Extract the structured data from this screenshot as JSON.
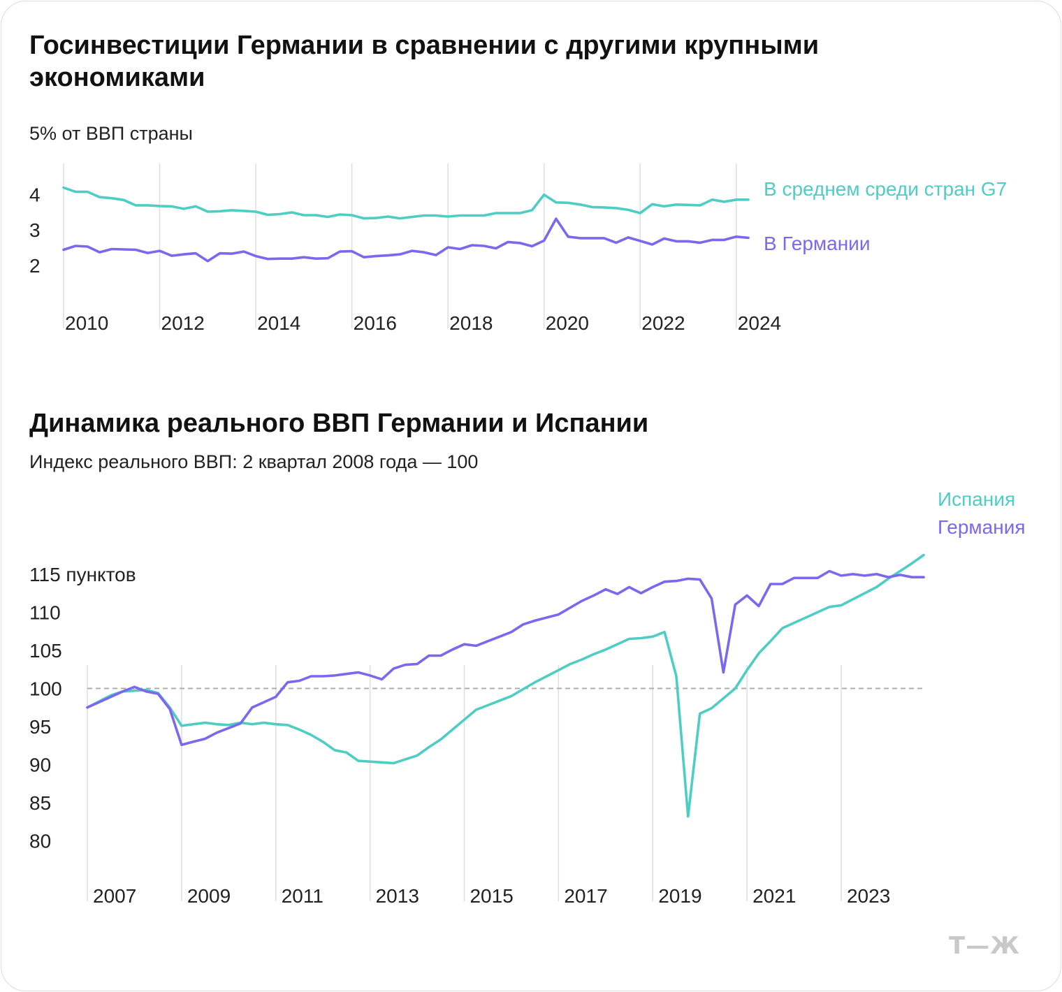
{
  "chart_data": [
    {
      "type": "line",
      "title": "Госинвестиции Германии в сравнении с другими крупными экономиками",
      "subtitle": "5% от ВВП страны",
      "x_tick_labels": [
        "2010",
        "2012",
        "2014",
        "2016",
        "2018",
        "2020",
        "2022",
        "2024"
      ],
      "y_tick_labels": [
        "4",
        "3",
        "2"
      ],
      "ylim": [
        1.6,
        4.35
      ],
      "xlim": [
        2009.5,
        2023.75
      ],
      "grid": "vertical lines at years",
      "legend": "right, inline labels",
      "colors": {
        "g7": "#4ECDC4",
        "germany": "#7B68EE"
      },
      "series": [
        {
          "name": "В среднем среди стран G7",
          "x": [
            2009.5,
            2009.75,
            2010,
            2010.25,
            2010.5,
            2010.75,
            2011,
            2011.25,
            2011.5,
            2011.75,
            2012,
            2012.25,
            2012.5,
            2012.75,
            2013,
            2013.25,
            2013.5,
            2013.75,
            2014,
            2014.25,
            2014.5,
            2014.75,
            2015,
            2015.25,
            2015.5,
            2015.75,
            2016,
            2016.25,
            2016.5,
            2016.75,
            2017,
            2017.25,
            2017.5,
            2017.75,
            2018,
            2018.25,
            2018.5,
            2018.75,
            2019,
            2019.25,
            2019.5,
            2019.75,
            2020,
            2020.25,
            2020.5,
            2020.75,
            2021,
            2021.25,
            2021.5,
            2021.75,
            2022,
            2022.25,
            2022.5,
            2022.75,
            2023,
            2023.25,
            2023.5,
            2023.75
          ],
          "values": [
            4.2,
            4.08,
            4.08,
            3.93,
            3.9,
            3.85,
            3.7,
            3.7,
            3.68,
            3.67,
            3.6,
            3.67,
            3.52,
            3.53,
            3.56,
            3.54,
            3.52,
            3.43,
            3.45,
            3.5,
            3.42,
            3.42,
            3.37,
            3.44,
            3.42,
            3.33,
            3.34,
            3.38,
            3.33,
            3.37,
            3.41,
            3.41,
            3.38,
            3.41,
            3.41,
            3.41,
            3.48,
            3.48,
            3.48,
            3.56,
            4.0,
            3.78,
            3.77,
            3.72,
            3.65,
            3.64,
            3.62,
            3.57,
            3.48,
            3.73,
            3.67,
            3.72,
            3.71,
            3.7,
            3.86,
            3.8,
            3.86,
            3.86
          ]
        },
        {
          "name": "В Германии",
          "x": [
            2009.5,
            2009.75,
            2010,
            2010.25,
            2010.5,
            2010.75,
            2011,
            2011.25,
            2011.5,
            2011.75,
            2012,
            2012.25,
            2012.5,
            2012.75,
            2013,
            2013.25,
            2013.5,
            2013.75,
            2014,
            2014.25,
            2014.5,
            2014.75,
            2015,
            2015.25,
            2015.5,
            2015.75,
            2016,
            2016.25,
            2016.5,
            2016.75,
            2017,
            2017.25,
            2017.5,
            2017.75,
            2018,
            2018.25,
            2018.5,
            2018.75,
            2019,
            2019.25,
            2019.5,
            2019.75,
            2020,
            2020.25,
            2020.5,
            2020.75,
            2021,
            2021.25,
            2021.5,
            2021.75,
            2022,
            2022.25,
            2022.5,
            2022.75,
            2023,
            2023.25,
            2023.5,
            2023.75
          ],
          "values": [
            2.44,
            2.55,
            2.53,
            2.37,
            2.46,
            2.45,
            2.44,
            2.35,
            2.41,
            2.27,
            2.31,
            2.34,
            2.12,
            2.34,
            2.33,
            2.39,
            2.26,
            2.18,
            2.19,
            2.19,
            2.23,
            2.19,
            2.2,
            2.39,
            2.4,
            2.23,
            2.26,
            2.28,
            2.31,
            2.41,
            2.37,
            2.29,
            2.51,
            2.46,
            2.57,
            2.55,
            2.48,
            2.66,
            2.63,
            2.54,
            2.7,
            3.32,
            2.81,
            2.77,
            2.77,
            2.77,
            2.64,
            2.79,
            2.69,
            2.59,
            2.76,
            2.68,
            2.68,
            2.64,
            2.72,
            2.72,
            2.81,
            2.78
          ]
        }
      ]
    },
    {
      "type": "line",
      "title": "Динамика реального ВВП Германии и Испании",
      "subtitle": "Индекс реального ВВП: 2 квартал 2008 года — 100",
      "x_tick_labels": [
        "2007",
        "2009",
        "2011",
        "2013",
        "2015",
        "2017",
        "2019",
        "2021",
        "2023"
      ],
      "y_tick_labels": [
        "115 пунктов",
        "110",
        "105",
        "100",
        "95",
        "90",
        "85",
        "80"
      ],
      "ylim": [
        78.5,
        117
      ],
      "xlim": [
        2007,
        2024.75
      ],
      "reference_line": 100,
      "grid": "vertical lines at years",
      "legend": "top-right, inline labels",
      "colors": {
        "spain": "#4ECDC4",
        "germany": "#7B68EE",
        "reference": "#aaaaaa"
      },
      "series": [
        {
          "name": "Испания",
          "x": [
            2007,
            2007.25,
            2007.5,
            2007.75,
            2008,
            2008.25,
            2008.5,
            2008.75,
            2009,
            2009.25,
            2009.5,
            2009.75,
            2010,
            2010.25,
            2010.5,
            2010.75,
            2011,
            2011.25,
            2011.5,
            2011.75,
            2012,
            2012.25,
            2012.5,
            2012.75,
            2013,
            2013.25,
            2013.5,
            2013.75,
            2014,
            2014.25,
            2014.5,
            2014.75,
            2015,
            2015.25,
            2015.5,
            2015.75,
            2016,
            2016.25,
            2016.5,
            2016.75,
            2017,
            2017.25,
            2017.5,
            2017.75,
            2018,
            2018.25,
            2018.5,
            2018.75,
            2019,
            2019.25,
            2019.5,
            2019.75,
            2020,
            2020.25,
            2020.5,
            2020.75,
            2021,
            2021.25,
            2021.5,
            2021.75,
            2022,
            2022.25,
            2022.5,
            2022.75,
            2023,
            2023.25,
            2023.5,
            2023.75,
            2024,
            2024.25,
            2024.5,
            2024.75
          ],
          "values": [
            97.5,
            98.3,
            99.1,
            99.6,
            99.7,
            99.8,
            99.4,
            97.5,
            95.1,
            95.3,
            95.5,
            95.3,
            95.2,
            95.5,
            95.3,
            95.5,
            95.3,
            95.2,
            94.6,
            93.9,
            93.0,
            91.9,
            91.6,
            90.5,
            90.4,
            90.3,
            90.2,
            90.7,
            91.2,
            92.3,
            93.3,
            94.6,
            95.9,
            97.2,
            97.8,
            98.4,
            99.0,
            99.9,
            100.8,
            101.6,
            102.4,
            103.2,
            103.8,
            104.5,
            105.1,
            105.8,
            106.5,
            106.6,
            106.8,
            107.4,
            101.6,
            83.2,
            96.7,
            97.4,
            98.7,
            100.0,
            102.4,
            104.6,
            106.2,
            107.9,
            108.6,
            109.3,
            110.0,
            110.7,
            110.9,
            111.7,
            112.5,
            113.3,
            114.4,
            115.4,
            116.4,
            117.5
          ]
        },
        {
          "name": "Германия",
          "x": [
            2007,
            2007.25,
            2007.5,
            2007.75,
            2008,
            2008.25,
            2008.5,
            2008.75,
            2009,
            2009.25,
            2009.5,
            2009.75,
            2010,
            2010.25,
            2010.5,
            2010.75,
            2011,
            2011.25,
            2011.5,
            2011.75,
            2012,
            2012.25,
            2012.5,
            2012.75,
            2013,
            2013.25,
            2013.5,
            2013.75,
            2014,
            2014.25,
            2014.5,
            2014.75,
            2015,
            2015.25,
            2015.5,
            2015.75,
            2016,
            2016.25,
            2016.5,
            2016.75,
            2017,
            2017.25,
            2017.5,
            2017.75,
            2018,
            2018.25,
            2018.5,
            2018.75,
            2019,
            2019.25,
            2019.5,
            2019.75,
            2020,
            2020.25,
            2020.5,
            2020.75,
            2021,
            2021.25,
            2021.5,
            2021.75,
            2022,
            2022.25,
            2022.5,
            2022.75,
            2023,
            2023.25,
            2023.5,
            2023.75,
            2024,
            2024.25,
            2024.5,
            2024.75
          ],
          "values": [
            97.5,
            98.2,
            98.9,
            99.6,
            100.2,
            99.6,
            99.3,
            97.3,
            92.6,
            93.0,
            93.4,
            94.2,
            94.8,
            95.4,
            97.5,
            98.2,
            98.9,
            100.8,
            101.0,
            101.6,
            101.6,
            101.7,
            101.9,
            102.1,
            101.7,
            101.2,
            102.6,
            103.1,
            103.2,
            104.3,
            104.3,
            105.1,
            105.8,
            105.6,
            106.2,
            106.8,
            107.4,
            108.4,
            108.9,
            109.3,
            109.7,
            110.6,
            111.5,
            112.2,
            113.0,
            112.4,
            113.3,
            112.5,
            113.3,
            114.0,
            114.1,
            114.4,
            114.3,
            111.8,
            102.1,
            111.0,
            112.2,
            110.8,
            113.7,
            113.7,
            114.5,
            114.5,
            114.5,
            115.4,
            114.8,
            115.0,
            114.8,
            115.0,
            114.6,
            114.9,
            114.6,
            114.6
          ]
        }
      ]
    }
  ],
  "logo": "Т—Ж"
}
